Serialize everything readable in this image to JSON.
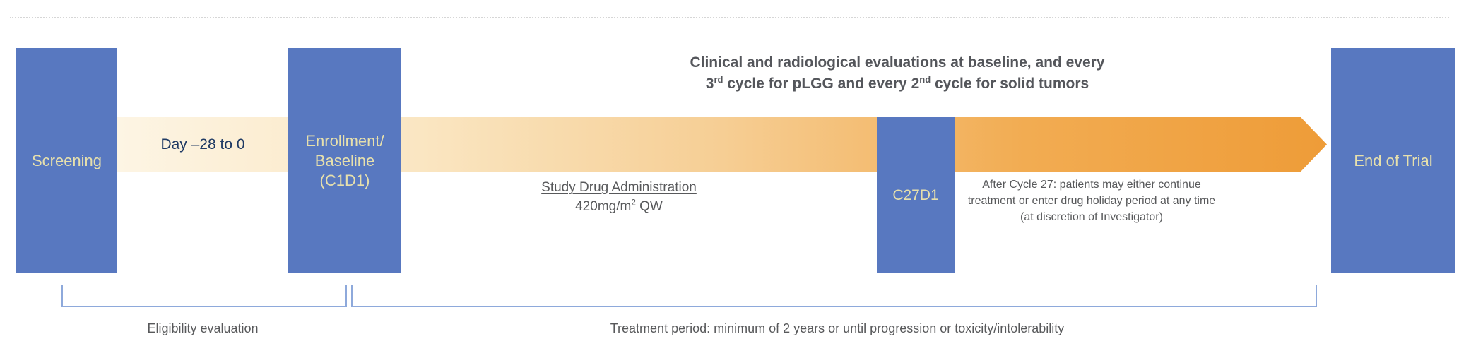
{
  "timeline": {
    "screening_label": "Screening",
    "day_range_label": "Day –28 to 0",
    "enrollment_line1": "Enrollment/",
    "enrollment_line2": "Baseline",
    "enrollment_line3": "(C1D1)",
    "c27d1_label": "C27D1",
    "end_of_trial_label": "End of Trial"
  },
  "evaluations_note": {
    "line1": "Clinical and radiological evaluations at baseline, and every",
    "line2_part1": "3",
    "line2_sup1": "rd",
    "line2_part2": " cycle for pLGG and every 2",
    "line2_sup2": "nd",
    "line2_part3": " cycle for solid tumors"
  },
  "study_drug": {
    "heading": "Study Drug Administration",
    "dose_part1": "420mg/m",
    "dose_sup": "2",
    "dose_part2": " QW"
  },
  "after_cycle_note": {
    "line1": "After Cycle 27: patients may either continue",
    "line2": "treatment or enter drug holiday period at any time",
    "line3": "(at discretion of Investigator)"
  },
  "brackets": {
    "eligibility_label": "Eligibility evaluation",
    "treatment_label": "Treatment period: minimum of 2 years or until progression or toxicity/intolerability"
  },
  "colors": {
    "box_blue": "#5878c0",
    "box_label_text": "#e7e0ac",
    "day_label_text": "#1f3a64",
    "title_text": "#54565b",
    "body_text": "#58595b",
    "bracket_blue": "#8ea9db",
    "arrow_gradient_start": "#fdf5e4",
    "arrow_gradient_end": "#ee9c38",
    "dotted_divider": "#d6d6d6"
  }
}
